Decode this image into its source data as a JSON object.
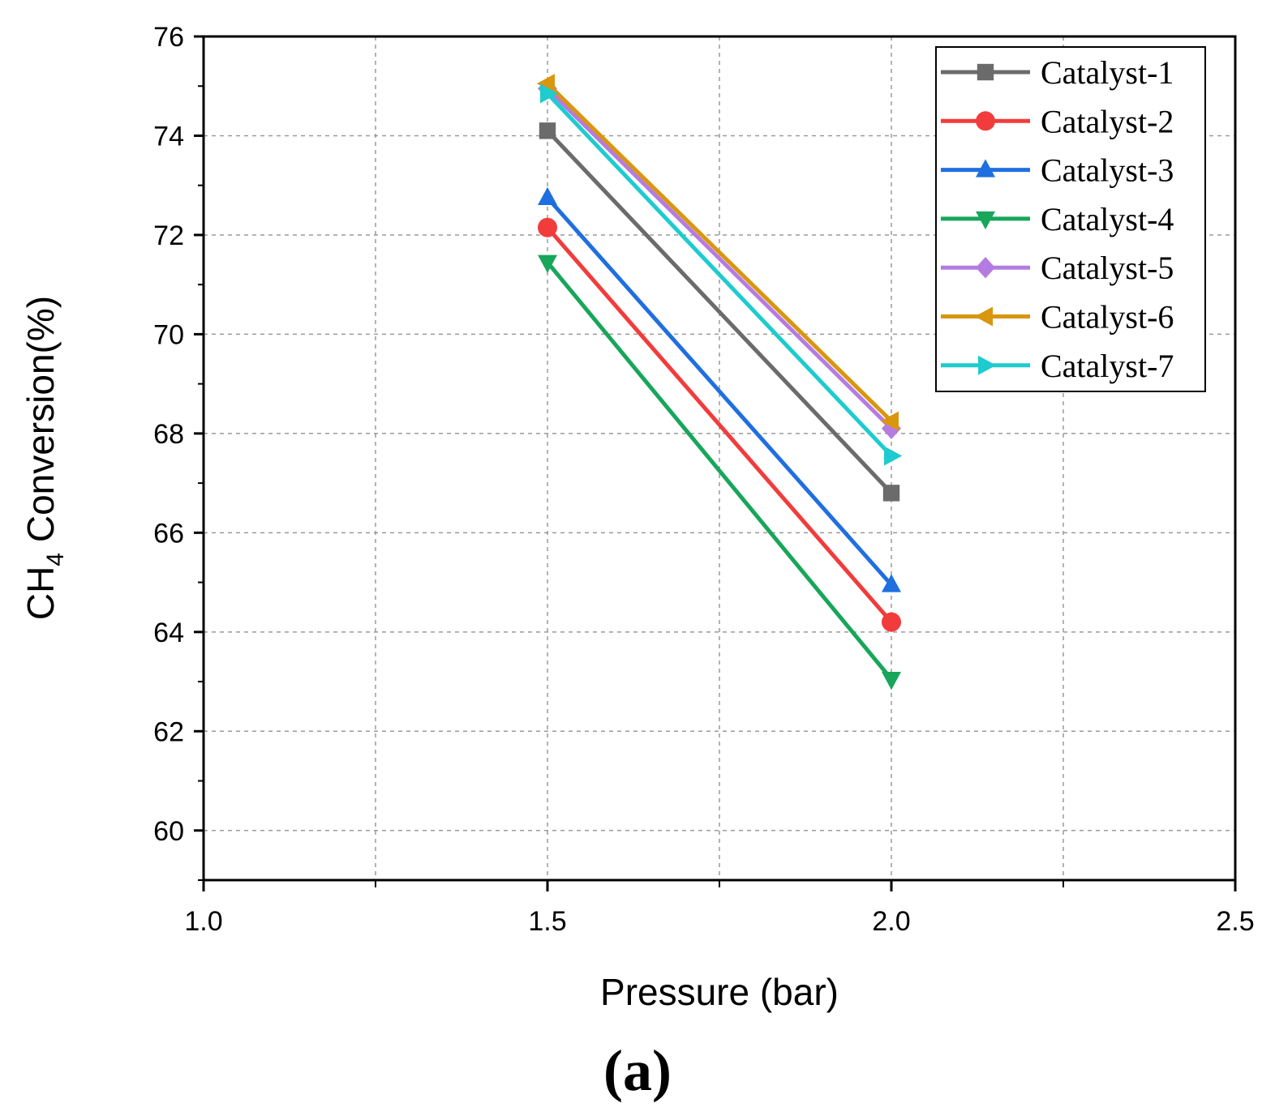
{
  "chart_data": {
    "type": "line",
    "title": "",
    "xlabel": "Pressure (bar)",
    "ylabel_main": "CH",
    "ylabel_sub": "4",
    "ylabel_rest": " Conversion(%)",
    "xlim": [
      1.0,
      2.5
    ],
    "ylim": [
      59,
      76
    ],
    "xticks": [
      1.0,
      1.5,
      2.0,
      2.5
    ],
    "xtick_labels": [
      "1.0",
      "1.5",
      "2.0",
      "2.5"
    ],
    "yticks": [
      60,
      62,
      64,
      66,
      68,
      70,
      72,
      74,
      76
    ],
    "ytick_labels": [
      "60",
      "62",
      "64",
      "66",
      "68",
      "70",
      "72",
      "74",
      "76"
    ],
    "grid": true,
    "legend_position": "top-right",
    "x": [
      1.5,
      2.0
    ],
    "series": [
      {
        "name": "Catalyst-1",
        "values": [
          74.1,
          66.8
        ],
        "color": "#6b6b6b",
        "marker": "square"
      },
      {
        "name": "Catalyst-2",
        "values": [
          72.15,
          64.2
        ],
        "color": "#f23c3c",
        "marker": "circle"
      },
      {
        "name": "Catalyst-3",
        "values": [
          72.75,
          64.95
        ],
        "color": "#1f6fe0",
        "marker": "triangle-up"
      },
      {
        "name": "Catalyst-4",
        "values": [
          71.45,
          63.05
        ],
        "color": "#17a65a",
        "marker": "triangle-down"
      },
      {
        "name": "Catalyst-5",
        "values": [
          74.95,
          68.1
        ],
        "color": "#b47ce0",
        "marker": "diamond"
      },
      {
        "name": "Catalyst-6",
        "values": [
          75.05,
          68.25
        ],
        "color": "#d9960f",
        "marker": "triangle-left"
      },
      {
        "name": "Catalyst-7",
        "values": [
          74.85,
          67.55
        ],
        "color": "#1ecbcf",
        "marker": "triangle-right"
      }
    ]
  },
  "panel_label": "(a)"
}
